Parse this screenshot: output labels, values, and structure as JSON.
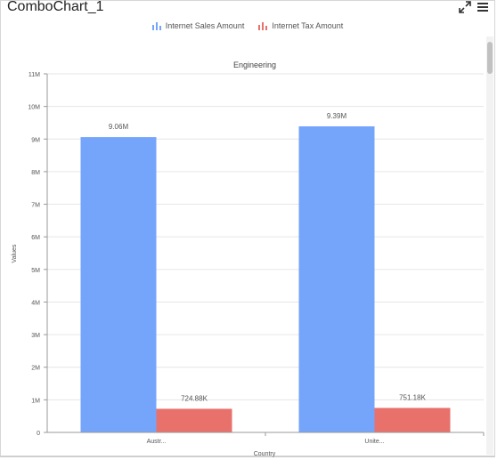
{
  "widget": {
    "title": "ComboChart_1",
    "icons": {
      "expand": "expand-icon",
      "menu": "hamburger-menu-icon"
    }
  },
  "chart_data": {
    "type": "bar",
    "title": "Engineering",
    "xlabel": "Country",
    "ylabel": "Values",
    "categories": [
      "Austr...",
      "Unite..."
    ],
    "series": [
      {
        "name": "Internet Sales Amount",
        "values": [
          9060000,
          9390000
        ],
        "labels": [
          "9.06M",
          "9.39M"
        ],
        "color": "#75a5fb"
      },
      {
        "name": "Internet Tax Amount",
        "values": [
          724880,
          751180
        ],
        "labels": [
          "724.88K",
          "751.18K"
        ],
        "color": "#e8716b"
      }
    ],
    "ylim": [
      0,
      11000000
    ],
    "yticks": [
      "0",
      "1M",
      "2M",
      "3M",
      "4M",
      "5M",
      "6M",
      "7M",
      "8M",
      "9M",
      "10M",
      "11M"
    ],
    "grid": true,
    "legend_position": "top-center"
  }
}
